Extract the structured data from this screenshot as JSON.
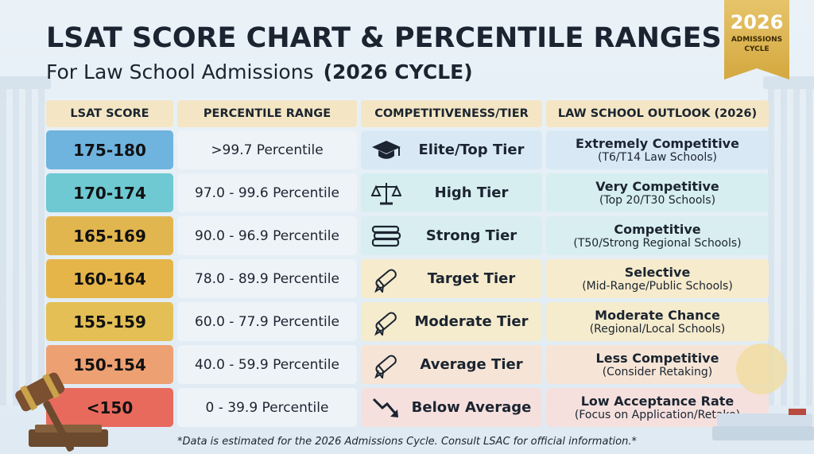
{
  "title": "LSAT SCORE CHART & PERCENTILE RANGES",
  "subtitle": "For Law School Admissions",
  "subtitle_cycle": "(2026 CYCLE)",
  "badge": {
    "year": "2026",
    "line1": "ADMISSIONS",
    "line2": "CYCLE"
  },
  "headers": [
    "LSAT SCORE",
    "PERCENTILE RANGE",
    "COMPETITIVENESS/TIER",
    "LAW SCHOOL OUTLOOK (2026)"
  ],
  "rows": [
    {
      "score": "175-180",
      "percentile": ">99.7 Percentile",
      "icon": "graduation-cap-icon",
      "tier": "Elite/Top Tier",
      "outlook": "Extremely Competitive",
      "outlook_detail": "(T6/T14 Law Schools)",
      "score_color": "#6fb3df",
      "row_color": "#d8e9f5"
    },
    {
      "score": "170-174",
      "percentile": "97.0 - 99.6 Percentile",
      "icon": "scales-icon",
      "tier": "High Tier",
      "outlook": "Very Competitive",
      "outlook_detail": "(Top 20/T30 Schools)",
      "score_color": "#6ec9d3",
      "row_color": "#d6eef0"
    },
    {
      "score": "165-169",
      "percentile": "90.0 - 96.9 Percentile",
      "icon": "books-icon",
      "tier": "Strong Tier",
      "outlook": "Competitive",
      "outlook_detail": "(T50/Strong Regional Schools)",
      "score_color": "#e2b64f",
      "row_color": "#d9eef0"
    },
    {
      "score": "160-164",
      "percentile": "78.0 - 89.9 Percentile",
      "icon": "diploma-icon",
      "tier": "Target Tier",
      "outlook": "Selective",
      "outlook_detail": "(Mid-Range/Public Schools)",
      "score_color": "#e6b54a",
      "row_color": "#f6ebcc"
    },
    {
      "score": "155-159",
      "percentile": "60.0 - 77.9 Percentile",
      "icon": "diploma-icon",
      "tier": "Moderate Tier",
      "outlook": "Moderate Chance",
      "outlook_detail": "(Regional/Local Schools)",
      "score_color": "#e3bf55",
      "row_color": "#f5ebcd"
    },
    {
      "score": "150-154",
      "percentile": "40.0 - 59.9 Percentile",
      "icon": "diploma-icon",
      "tier": "Average Tier",
      "outlook": "Less Competitive",
      "outlook_detail": "(Consider Retaking)",
      "score_color": "#eda071",
      "row_color": "#f6e5d6"
    },
    {
      "score": "<150",
      "percentile": "0 - 39.9 Percentile",
      "icon": "trend-down-icon",
      "tier": "Below Average",
      "outlook": "Low Acceptance Rate",
      "outlook_detail": "(Focus on Application/Retake)",
      "score_color": "#e86a5c",
      "row_color": "#f5e0de"
    }
  ],
  "footnote": "*Data is estimated for the 2026 Admissions Cycle. Consult LSAC for official information.*"
}
